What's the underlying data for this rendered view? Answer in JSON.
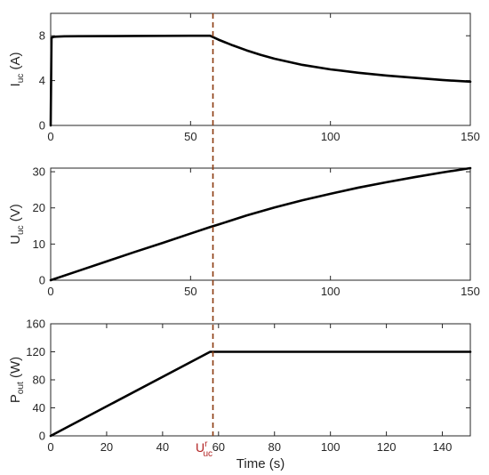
{
  "chart_data": [
    {
      "type": "line",
      "xlabel": "",
      "ylabel": "I",
      "ylabel_sub": "uc",
      "ylabel_unit": " (A)",
      "xlim": [
        0,
        150
      ],
      "ylim": [
        0,
        10
      ],
      "xticks": [
        0,
        50,
        100,
        150
      ],
      "yticks": [
        0,
        4,
        8
      ],
      "series": [
        {
          "x": [
            0,
            0.3,
            0.6,
            1,
            2,
            5,
            10,
            20,
            30,
            40,
            50,
            57,
            60,
            65,
            70,
            75,
            80,
            90,
            100,
            110,
            120,
            130,
            140,
            150
          ],
          "y": [
            0,
            7.8,
            7.85,
            7.9,
            7.92,
            7.95,
            7.96,
            7.97,
            7.98,
            7.99,
            8.0,
            8.0,
            7.65,
            7.15,
            6.7,
            6.3,
            5.95,
            5.4,
            5.0,
            4.7,
            4.45,
            4.25,
            4.05,
            3.9
          ]
        }
      ]
    },
    {
      "type": "line",
      "xlabel": "",
      "ylabel": "U",
      "ylabel_sub": "uc",
      "ylabel_unit": " (V)",
      "xlim": [
        0,
        150
      ],
      "ylim": [
        0,
        31
      ],
      "xticks": [
        0,
        50,
        100,
        150
      ],
      "yticks": [
        0,
        10,
        20,
        30
      ],
      "series": [
        {
          "x": [
            0,
            10,
            20,
            30,
            40,
            50,
            57,
            60,
            70,
            80,
            90,
            100,
            110,
            120,
            130,
            140,
            150
          ],
          "y": [
            0,
            2.6,
            5.2,
            7.8,
            10.3,
            12.9,
            14.7,
            15.4,
            17.9,
            20.1,
            22.1,
            23.9,
            25.6,
            27.1,
            28.5,
            29.8,
            31.0
          ]
        }
      ]
    },
    {
      "type": "line",
      "xlabel": "Time (s)",
      "ylabel": "P",
      "ylabel_sub": "out",
      "ylabel_unit": " (W)",
      "xlim": [
        0,
        150
      ],
      "ylim": [
        0,
        160
      ],
      "xticks": [
        0,
        20,
        40,
        60,
        80,
        100,
        120,
        140
      ],
      "yticks": [
        0,
        40,
        80,
        120,
        160
      ],
      "series": [
        {
          "x": [
            0,
            57,
            58,
            80,
            100,
            120,
            140,
            150
          ],
          "y": [
            0,
            120,
            120,
            120,
            120,
            120,
            120,
            120
          ]
        }
      ]
    }
  ],
  "marker": {
    "x": 58,
    "label": "U",
    "label_sup": "r",
    "label_sub": "uc",
    "color": "#8b3a0f",
    "label_color": "#b22222"
  }
}
